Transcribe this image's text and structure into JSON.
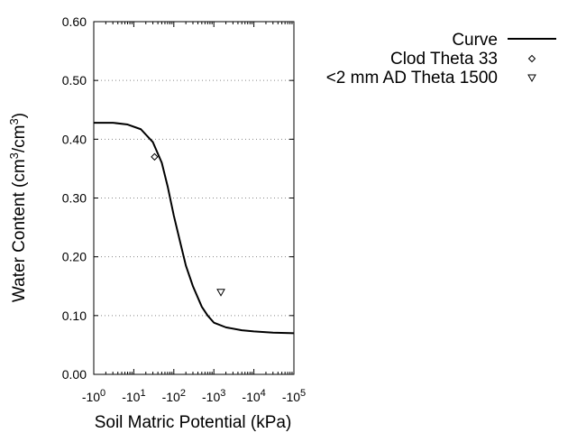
{
  "chart_data": {
    "type": "line",
    "xscale": "log",
    "xlabel": "Soil Matric Potential (kPa)",
    "ylabel_main": "Water Content (cm",
    "ylabel_sup1": "3",
    "ylabel_mid": "/cm",
    "ylabel_sup2": "3",
    "ylabel_end": ")",
    "xlim": [
      1,
      100000
    ],
    "ylim": [
      0,
      0.6
    ],
    "xticks": [
      {
        "value": 1,
        "base": "-10",
        "exp": "0"
      },
      {
        "value": 10,
        "base": "-10",
        "exp": "1"
      },
      {
        "value": 100,
        "base": "-10",
        "exp": "2"
      },
      {
        "value": 1000,
        "base": "-10",
        "exp": "3"
      },
      {
        "value": 10000,
        "base": "-10",
        "exp": "4"
      },
      {
        "value": 100000,
        "base": "-10",
        "exp": "5"
      }
    ],
    "yticks": [
      {
        "value": 0.0,
        "label": "0.00"
      },
      {
        "value": 0.1,
        "label": "0.10"
      },
      {
        "value": 0.2,
        "label": "0.20"
      },
      {
        "value": 0.3,
        "label": "0.30"
      },
      {
        "value": 0.4,
        "label": "0.40"
      },
      {
        "value": 0.5,
        "label": "0.50"
      },
      {
        "value": 0.6,
        "label": "0.60"
      }
    ],
    "grid": "horizontal-dotted",
    "legend_position": "top-right-outside",
    "series": [
      {
        "name": "Curve",
        "kind": "line",
        "color": "#000000",
        "x": [
          1,
          3,
          7,
          15,
          30,
          50,
          70,
          100,
          150,
          200,
          300,
          500,
          700,
          1000,
          2000,
          5000,
          10000,
          30000,
          100000
        ],
        "y": [
          0.428,
          0.428,
          0.425,
          0.417,
          0.395,
          0.36,
          0.32,
          0.27,
          0.22,
          0.185,
          0.15,
          0.115,
          0.1,
          0.088,
          0.08,
          0.075,
          0.073,
          0.071,
          0.07
        ]
      },
      {
        "name": "Clod Theta 33",
        "kind": "marker",
        "marker": "diamond",
        "x": [
          33
        ],
        "y": [
          0.37
        ]
      },
      {
        "name": "<2 mm AD Theta 1500",
        "kind": "marker",
        "marker": "triangle-down",
        "x": [
          1500
        ],
        "y": [
          0.14
        ]
      }
    ]
  }
}
